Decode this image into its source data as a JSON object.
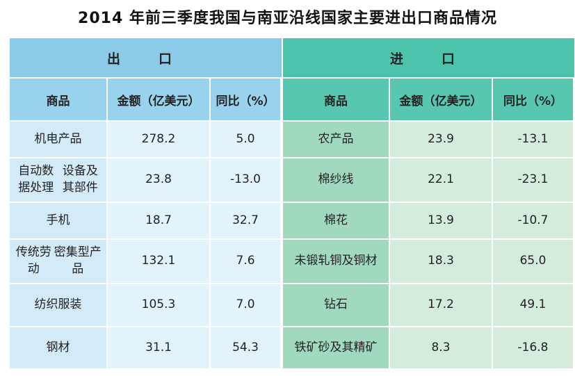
{
  "title": "2014 年前三季度我国与南亚沿线国家主要进出口商品情况",
  "chart_data": {
    "type": "table",
    "sections": [
      {
        "name": "出　口",
        "columns": [
          "商品",
          "金额（亿美元）",
          "同比（%）"
        ],
        "rows": [
          [
            "机电产品",
            "278.2",
            "5.0"
          ],
          [
            "自动数据处理设备及其部件",
            "23.8",
            "-13.0"
          ],
          [
            "手机",
            "18.7",
            "32.7"
          ],
          [
            "传统劳动密集型产品",
            "132.1",
            "7.6"
          ],
          [
            "纺织服装",
            "105.3",
            "7.0"
          ],
          [
            "钢材",
            "31.1",
            "54.3"
          ]
        ]
      },
      {
        "name": "进　口",
        "columns": [
          "商品",
          "金额（亿美元）",
          "同比（%）"
        ],
        "rows": [
          [
            "农产品",
            "23.9",
            "-13.1"
          ],
          [
            "棉纱线",
            "22.1",
            "-23.1"
          ],
          [
            "棉花",
            "13.9",
            "-10.7"
          ],
          [
            "未锻轧铜及铜材",
            "18.3",
            "65.0"
          ],
          [
            "钻石",
            "17.2",
            "49.1"
          ],
          [
            "铁矿砂及其精矿",
            "8.3",
            "-16.8"
          ]
        ]
      }
    ]
  }
}
